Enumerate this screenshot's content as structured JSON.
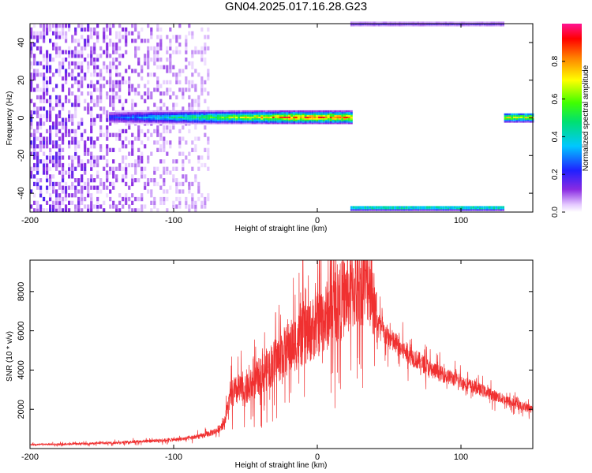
{
  "title": "GN04.2025.017.16.28.G23",
  "chart_data": [
    {
      "type": "heatmap",
      "xlabel": "Height of straight line (km)",
      "ylabel": "Frequency (Hz)",
      "xlim": [
        -200,
        150
      ],
      "ylim": [
        -50,
        50
      ],
      "xticks": [
        "-200",
        "-100",
        "0",
        "100"
      ],
      "xtick_values": [
        -200,
        -100,
        0,
        100
      ],
      "yticks": [
        "-40",
        "-20",
        "0",
        "20",
        "40"
      ],
      "ytick_values": [
        -40,
        -20,
        0,
        20,
        40
      ],
      "colorbar": {
        "label": "Normalized spectral amplitude",
        "ticks": [
          "0.0",
          "0.2",
          "0.4",
          "0.6",
          "0.8"
        ],
        "tick_values": [
          0,
          0.2,
          0.4,
          0.6,
          0.8
        ],
        "range": [
          0,
          1
        ],
        "colormap": "rainbow (white-violet-blue-cyan-green-yellow-red-magenta)"
      },
      "features": {
        "noise_region_x": [
          -200,
          -75
        ],
        "signal_band": {
          "x": [
            -145,
            23
          ],
          "frequency": 0
        },
        "signal_band_right": {
          "x": [
            130,
            150
          ],
          "frequency": 0
        },
        "aliased_bands": {
          "x": [
            23,
            130
          ],
          "frequencies": [
            -49,
            49
          ]
        }
      }
    },
    {
      "type": "line",
      "xlabel": "Height of straight line (km)",
      "ylabel": "SNR (10 * v/v)",
      "xlim": [
        -200,
        150
      ],
      "ylim": [
        0,
        9600
      ],
      "xticks": [
        "-200",
        "-100",
        "0",
        "100"
      ],
      "xtick_values": [
        -200,
        -100,
        0,
        100
      ],
      "yticks": [
        "2000",
        "4000",
        "6000",
        "8000"
      ],
      "ytick_values": [
        2000,
        4000,
        6000,
        8000
      ],
      "color": "#f03030",
      "series": [
        {
          "x": [
            -200,
            -180,
            -160,
            -140,
            -120,
            -100,
            -90,
            -80,
            -70,
            -65,
            -62,
            -60,
            -55,
            -50,
            -40,
            -30,
            -20,
            -10,
            0,
            10,
            20,
            25,
            30,
            35,
            38,
            40,
            45,
            50,
            60,
            70,
            80,
            90,
            100,
            110,
            120,
            130,
            140,
            150
          ],
          "values": [
            200,
            220,
            250,
            300,
            380,
            450,
            520,
            650,
            900,
            1300,
            2200,
            2700,
            3000,
            2900,
            3700,
            4400,
            5100,
            5700,
            6300,
            7000,
            7800,
            8100,
            8500,
            8700,
            8300,
            6800,
            6000,
            5600,
            5000,
            4500,
            4000,
            3700,
            3400,
            3100,
            2800,
            2500,
            2200,
            2000
          ]
        }
      ]
    }
  ]
}
